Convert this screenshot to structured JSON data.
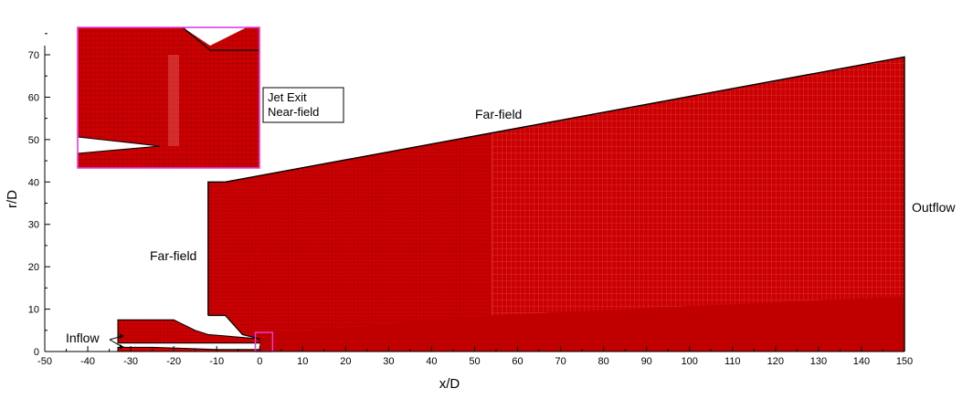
{
  "colors": {
    "mesh": "#cc0000",
    "mesh_line": "#8a0000",
    "boundary": "#000000",
    "inset_frame": "#e040e0",
    "background": "#ffffff"
  },
  "axes": {
    "xlabel": "x/D",
    "ylabel": "r/D",
    "x_ticks": [
      "-50",
      "-40",
      "-30",
      "-20",
      "-10",
      "0",
      "10",
      "20",
      "30",
      "40",
      "50",
      "60",
      "70",
      "80",
      "90",
      "100",
      "110",
      "120",
      "130",
      "140",
      "150"
    ],
    "y_ticks": [
      "0",
      "10",
      "20",
      "30",
      "40",
      "50",
      "60",
      "70"
    ],
    "x_range": [
      -50,
      150
    ],
    "y_range": [
      0,
      75
    ]
  },
  "labels": {
    "far_field_top": "Far-field",
    "far_field_left": "Far-field",
    "outflow": "Outflow",
    "inflow": "Inflow",
    "inset_line1": "Jet Exit",
    "inset_line2": "Near-field"
  },
  "domain_geometry": {
    "upper_boundary": [
      [
        -12,
        40
      ],
      [
        -8,
        40
      ],
      [
        150,
        69.5
      ]
    ],
    "left_wall": [
      [
        -12,
        8.5
      ],
      [
        -12,
        40
      ]
    ],
    "outflow_x": 150,
    "dense_zone_start_x": 54,
    "nozzle_outer_lip": [
      [
        -33,
        7.5
      ],
      [
        -20,
        7.5
      ],
      [
        -15,
        5
      ],
      [
        -12,
        4
      ],
      [
        0,
        3
      ],
      [
        0,
        2
      ]
    ],
    "nozzle_inner": [
      [
        -33,
        1
      ],
      [
        -25,
        1
      ],
      [
        -10,
        0.5
      ],
      [
        0,
        0.5
      ]
    ]
  },
  "inset_box_data": [
    -1,
    4.5,
    0,
    4
  ]
}
